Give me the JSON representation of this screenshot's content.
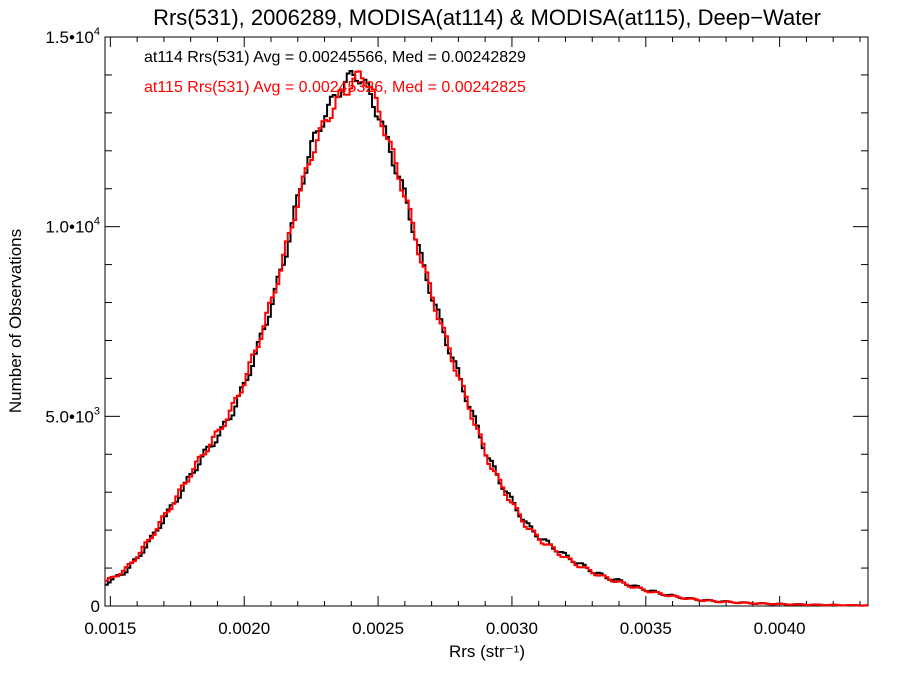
{
  "chart_data": {
    "type": "line",
    "title": "Rrs(531), 2006289, MODISA(at114) & MODISA(at115), Deep−Water",
    "xlabel": "Rrs (str⁻¹)",
    "ylabel": "Number of Observations",
    "xlim": [
      0.00148,
      0.00433
    ],
    "ylim": [
      0,
      15000
    ],
    "x_ticks": [
      {
        "value": 0.0015,
        "label": "0.0015"
      },
      {
        "value": 0.002,
        "label": "0.0020"
      },
      {
        "value": 0.0025,
        "label": "0.0025"
      },
      {
        "value": 0.003,
        "label": "0.0030"
      },
      {
        "value": 0.0035,
        "label": "0.0035"
      },
      {
        "value": 0.004,
        "label": "0.0040"
      }
    ],
    "y_ticks": [
      {
        "value": 0,
        "label": "0",
        "exp": ""
      },
      {
        "value": 5000,
        "label": "5.0•10",
        "exp": "3"
      },
      {
        "value": 10000,
        "label": "1.0•10",
        "exp": "4"
      },
      {
        "value": 15000,
        "label": "1.5•10",
        "exp": "4"
      }
    ],
    "grid": false,
    "legend": "top-left",
    "annotations": [
      {
        "text": "at114 Rrs(531) Avg = 0.00245566, Med = 0.00242829",
        "color": "#000000"
      },
      {
        "text": "at115 Rrs(531) Avg = 0.00245326, Med = 0.00242825",
        "color": "#ff0000"
      }
    ],
    "series": [
      {
        "color": "#000000",
        "points": [
          [
            0.00148,
            600
          ],
          [
            0.00155,
            900
          ],
          [
            0.0016,
            1300
          ],
          [
            0.00165,
            1800
          ],
          [
            0.0017,
            2350
          ],
          [
            0.00175,
            2900
          ],
          [
            0.0018,
            3500
          ],
          [
            0.00185,
            4050
          ],
          [
            0.0019,
            4500
          ],
          [
            0.00195,
            5100
          ],
          [
            0.002,
            5900
          ],
          [
            0.00205,
            6900
          ],
          [
            0.0021,
            8000
          ],
          [
            0.00215,
            9300
          ],
          [
            0.0022,
            10900
          ],
          [
            0.00225,
            12200
          ],
          [
            0.0023,
            13000
          ],
          [
            0.00235,
            13600
          ],
          [
            0.0024,
            14000
          ],
          [
            0.00242,
            14000
          ],
          [
            0.00245,
            13700
          ],
          [
            0.0025,
            12900
          ],
          [
            0.00255,
            11800
          ],
          [
            0.0026,
            10700
          ],
          [
            0.00265,
            9300
          ],
          [
            0.0027,
            8100
          ],
          [
            0.00275,
            7000
          ],
          [
            0.0028,
            6000
          ],
          [
            0.00285,
            5000
          ],
          [
            0.0029,
            4000
          ],
          [
            0.00295,
            3300
          ],
          [
            0.003,
            2700
          ],
          [
            0.00305,
            2150
          ],
          [
            0.0031,
            1800
          ],
          [
            0.00315,
            1550
          ],
          [
            0.0032,
            1300
          ],
          [
            0.00325,
            1100
          ],
          [
            0.0033,
            900
          ],
          [
            0.00335,
            750
          ],
          [
            0.0034,
            650
          ],
          [
            0.00345,
            520
          ],
          [
            0.0035,
            420
          ],
          [
            0.00355,
            330
          ],
          [
            0.0036,
            260
          ],
          [
            0.00365,
            200
          ],
          [
            0.0037,
            160
          ],
          [
            0.00375,
            130
          ],
          [
            0.0038,
            110
          ],
          [
            0.00385,
            90
          ],
          [
            0.0039,
            70
          ],
          [
            0.004,
            50
          ],
          [
            0.0041,
            35
          ],
          [
            0.0042,
            25
          ],
          [
            0.00433,
            15
          ]
        ]
      },
      {
        "color": "#ff0000",
        "points": [
          [
            0.00148,
            650
          ],
          [
            0.00155,
            950
          ],
          [
            0.0016,
            1350
          ],
          [
            0.00165,
            1850
          ],
          [
            0.0017,
            2400
          ],
          [
            0.00175,
            2950
          ],
          [
            0.0018,
            3550
          ],
          [
            0.00185,
            4100
          ],
          [
            0.0019,
            4600
          ],
          [
            0.00195,
            5200
          ],
          [
            0.002,
            6000
          ],
          [
            0.00205,
            7000
          ],
          [
            0.0021,
            8100
          ],
          [
            0.00215,
            9400
          ],
          [
            0.0022,
            10800
          ],
          [
            0.00225,
            12000
          ],
          [
            0.0023,
            12800
          ],
          [
            0.00235,
            13400
          ],
          [
            0.0024,
            13800
          ],
          [
            0.00243,
            14000
          ],
          [
            0.00246,
            13800
          ],
          [
            0.0025,
            13000
          ],
          [
            0.00255,
            11900
          ],
          [
            0.0026,
            10700
          ],
          [
            0.00265,
            9300
          ],
          [
            0.0027,
            8100
          ],
          [
            0.00275,
            7000
          ],
          [
            0.0028,
            5950
          ],
          [
            0.00285,
            4950
          ],
          [
            0.0029,
            3950
          ],
          [
            0.00295,
            3250
          ],
          [
            0.003,
            2650
          ],
          [
            0.00305,
            2100
          ],
          [
            0.0031,
            1750
          ],
          [
            0.00315,
            1500
          ],
          [
            0.0032,
            1250
          ],
          [
            0.00325,
            1050
          ],
          [
            0.0033,
            880
          ],
          [
            0.00335,
            730
          ],
          [
            0.0034,
            620
          ],
          [
            0.00345,
            500
          ],
          [
            0.0035,
            400
          ],
          [
            0.00355,
            320
          ],
          [
            0.0036,
            250
          ],
          [
            0.00365,
            195
          ],
          [
            0.0037,
            155
          ],
          [
            0.00375,
            125
          ],
          [
            0.0038,
            105
          ],
          [
            0.00385,
            85
          ],
          [
            0.0039,
            68
          ],
          [
            0.004,
            48
          ],
          [
            0.0041,
            33
          ],
          [
            0.0042,
            23
          ],
          [
            0.00433,
            14
          ]
        ]
      }
    ]
  }
}
